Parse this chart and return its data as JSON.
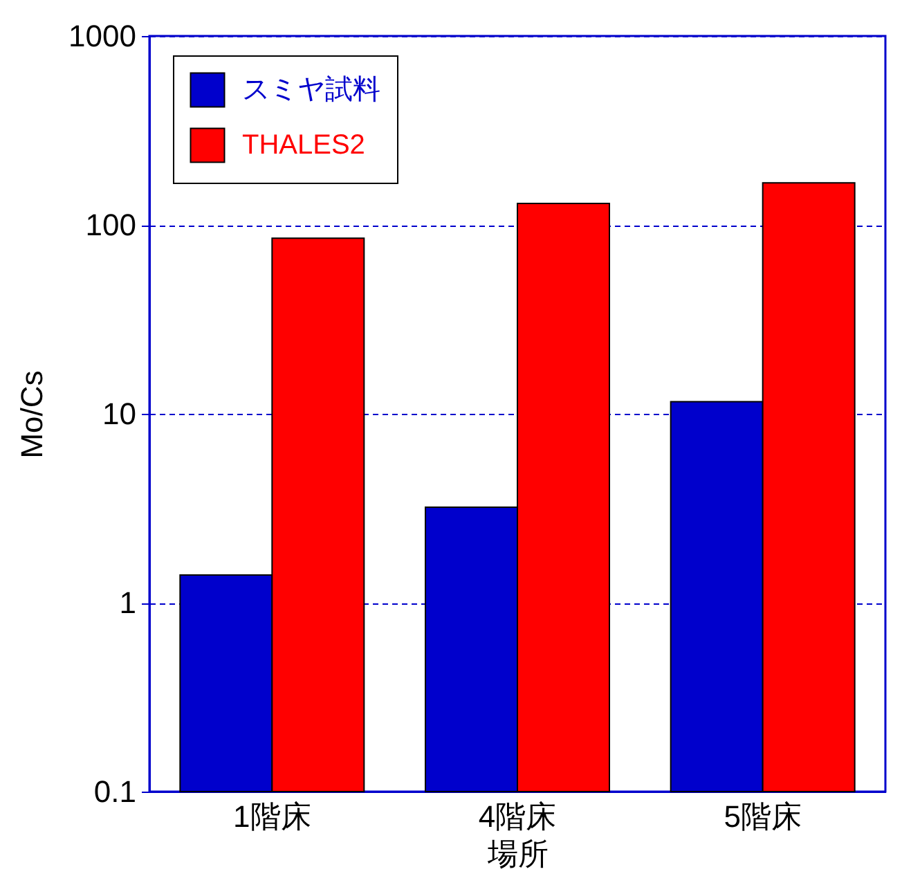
{
  "chart_data": {
    "type": "bar",
    "xlabel": "場所",
    "ylabel": "Mo/Cs",
    "categories": [
      "1階床",
      "4階床",
      "5階床"
    ],
    "series": [
      {
        "name": "スミヤ試料",
        "color": "#0000cc",
        "values": [
          1.4,
          3.2,
          11.6
        ]
      },
      {
        "name": "THALES2",
        "color": "#ff0000",
        "values": [
          85,
          130,
          167
        ]
      }
    ],
    "log": "y",
    "ylim": [
      0.1,
      1000
    ],
    "yticks": [
      0.1,
      1,
      10,
      100,
      1000
    ],
    "grid": "y",
    "legend": "top left"
  }
}
